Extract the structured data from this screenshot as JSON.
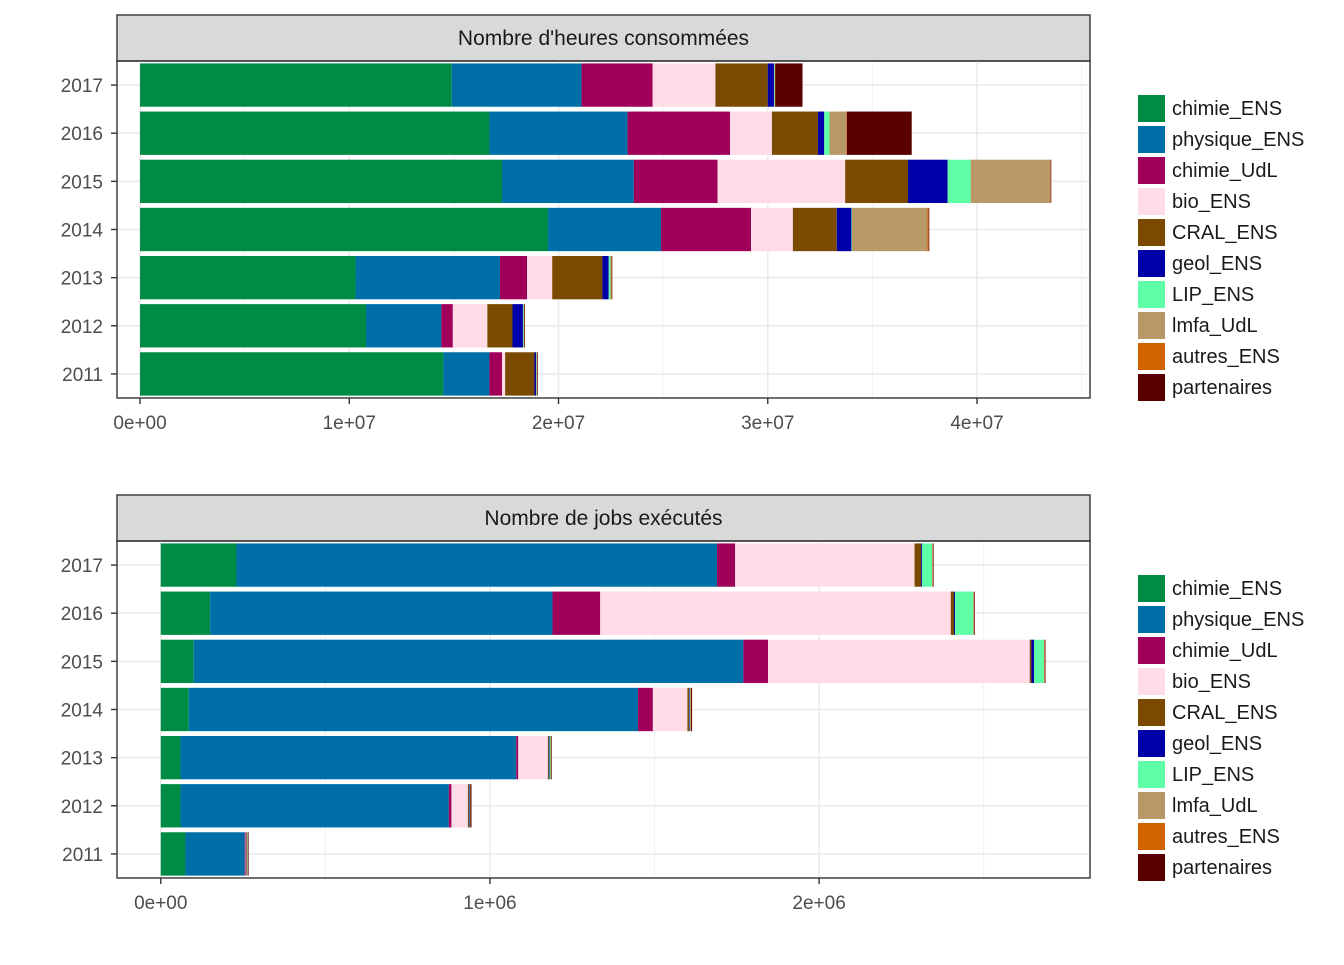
{
  "colors": {
    "chimie_ENS": "#008B45",
    "physique_ENS": "#006FA8",
    "chimie_UdL": "#A0005A",
    "bio_ENS": "#FFDCE6",
    "CRAL_ENS": "#7A4A00",
    "geol_ENS": "#0000A8",
    "LIP_ENS": "#5FFFA8",
    "lmfa_UdL": "#B89868",
    "autres_ENS": "#D26400",
    "partenaires": "#5A0000"
  },
  "chart_data": [
    {
      "type": "bar",
      "orientation": "horizontal",
      "stacked": true,
      "title": "Nombre d'heures consommées",
      "categories": [
        "2017",
        "2016",
        "2015",
        "2014",
        "2013",
        "2012",
        "2011"
      ],
      "xlim": [
        -1100000,
        45400000
      ],
      "xticks": [
        0,
        10000000,
        20000000,
        30000000,
        40000000
      ],
      "xtick_labels": [
        "0e+00",
        "1e+07",
        "2e+07",
        "3e+07",
        "4e+07"
      ],
      "grid": true,
      "legend_position": "right",
      "legend": [
        "chimie_ENS",
        "physique_ENS",
        "chimie_UdL",
        "bio_ENS",
        "CRAL_ENS",
        "geol_ENS",
        "LIP_ENS",
        "lmfa_UdL",
        "autres_ENS",
        "partenaires"
      ],
      "series": [
        {
          "name": "chimie_ENS",
          "values": [
            14900000,
            16700000,
            17300000,
            19500000,
            10300000,
            10800000,
            14500000
          ]
        },
        {
          "name": "physique_ENS",
          "values": [
            6200000,
            6600000,
            6300000,
            5400000,
            6900000,
            3600000,
            2200000
          ]
        },
        {
          "name": "chimie_UdL",
          "values": [
            3400000,
            4900000,
            4000000,
            4300000,
            1300000,
            550000,
            600000
          ]
        },
        {
          "name": "bio_ENS",
          "values": [
            3000000,
            2000000,
            6100000,
            2000000,
            1200000,
            1650000,
            150000
          ]
        },
        {
          "name": "CRAL_ENS",
          "values": [
            2500000,
            2200000,
            3000000,
            2100000,
            2400000,
            1200000,
            1400000
          ]
        },
        {
          "name": "geol_ENS",
          "values": [
            300000,
            300000,
            1900000,
            700000,
            300000,
            500000,
            80000
          ]
        },
        {
          "name": "LIP_ENS",
          "values": [
            30000,
            250000,
            1100000,
            30000,
            80000,
            30000,
            20000
          ]
        },
        {
          "name": "lmfa_UdL",
          "values": [
            20000,
            800000,
            3800000,
            3600000,
            50000,
            20000,
            20000
          ]
        },
        {
          "name": "autres_ENS",
          "values": [
            10000,
            30000,
            20000,
            60000,
            10000,
            10000,
            10000
          ]
        },
        {
          "name": "partenaires",
          "values": [
            1300000,
            3100000,
            20000,
            20000,
            10000,
            10000,
            10000
          ]
        }
      ]
    },
    {
      "type": "bar",
      "orientation": "horizontal",
      "stacked": true,
      "title": "Nombre de jobs exécutés",
      "categories": [
        "2017",
        "2016",
        "2015",
        "2014",
        "2013",
        "2012",
        "2011"
      ],
      "xlim": [
        -133000,
        2823000
      ],
      "xticks": [
        0,
        1000000,
        2000000
      ],
      "xtick_labels": [
        "0e+00",
        "1e+06",
        "2e+06"
      ],
      "grid": true,
      "legend_position": "right",
      "legend": [
        "chimie_ENS",
        "physique_ENS",
        "chimie_UdL",
        "bio_ENS",
        "CRAL_ENS",
        "geol_ENS",
        "LIP_ENS",
        "lmfa_UdL",
        "autres_ENS",
        "partenaires"
      ],
      "series": [
        {
          "name": "chimie_ENS",
          "values": [
            230000,
            150000,
            100000,
            85000,
            60000,
            60000,
            75000
          ]
        },
        {
          "name": "physique_ENS",
          "values": [
            1460000,
            1040000,
            1670000,
            1365000,
            1020000,
            815000,
            180000
          ]
        },
        {
          "name": "chimie_UdL",
          "values": [
            55000,
            145000,
            75000,
            45000,
            6000,
            8000,
            3000
          ]
        },
        {
          "name": "bio_ENS",
          "values": [
            545000,
            1065000,
            795000,
            105000,
            90000,
            50000,
            2000
          ]
        },
        {
          "name": "CRAL_ENS",
          "values": [
            20000,
            10000,
            5000,
            5000,
            3000,
            3000,
            1000
          ]
        },
        {
          "name": "geol_ENS",
          "values": [
            3000,
            3000,
            8000,
            2000,
            2000,
            2000,
            1000
          ]
        },
        {
          "name": "LIP_ENS",
          "values": [
            30000,
            55000,
            30000,
            1000,
            3000,
            1000,
            1000
          ]
        },
        {
          "name": "lmfa_UdL",
          "values": [
            2000,
            2000,
            2000,
            2000,
            1000,
            1000,
            1000
          ]
        },
        {
          "name": "autres_ENS",
          "values": [
            1000,
            1000,
            1000,
            1000,
            1000,
            1000,
            1000
          ]
        },
        {
          "name": "partenaires",
          "values": [
            1000,
            2000,
            1000,
            3000,
            1000,
            3000,
            1000
          ]
        }
      ]
    }
  ]
}
